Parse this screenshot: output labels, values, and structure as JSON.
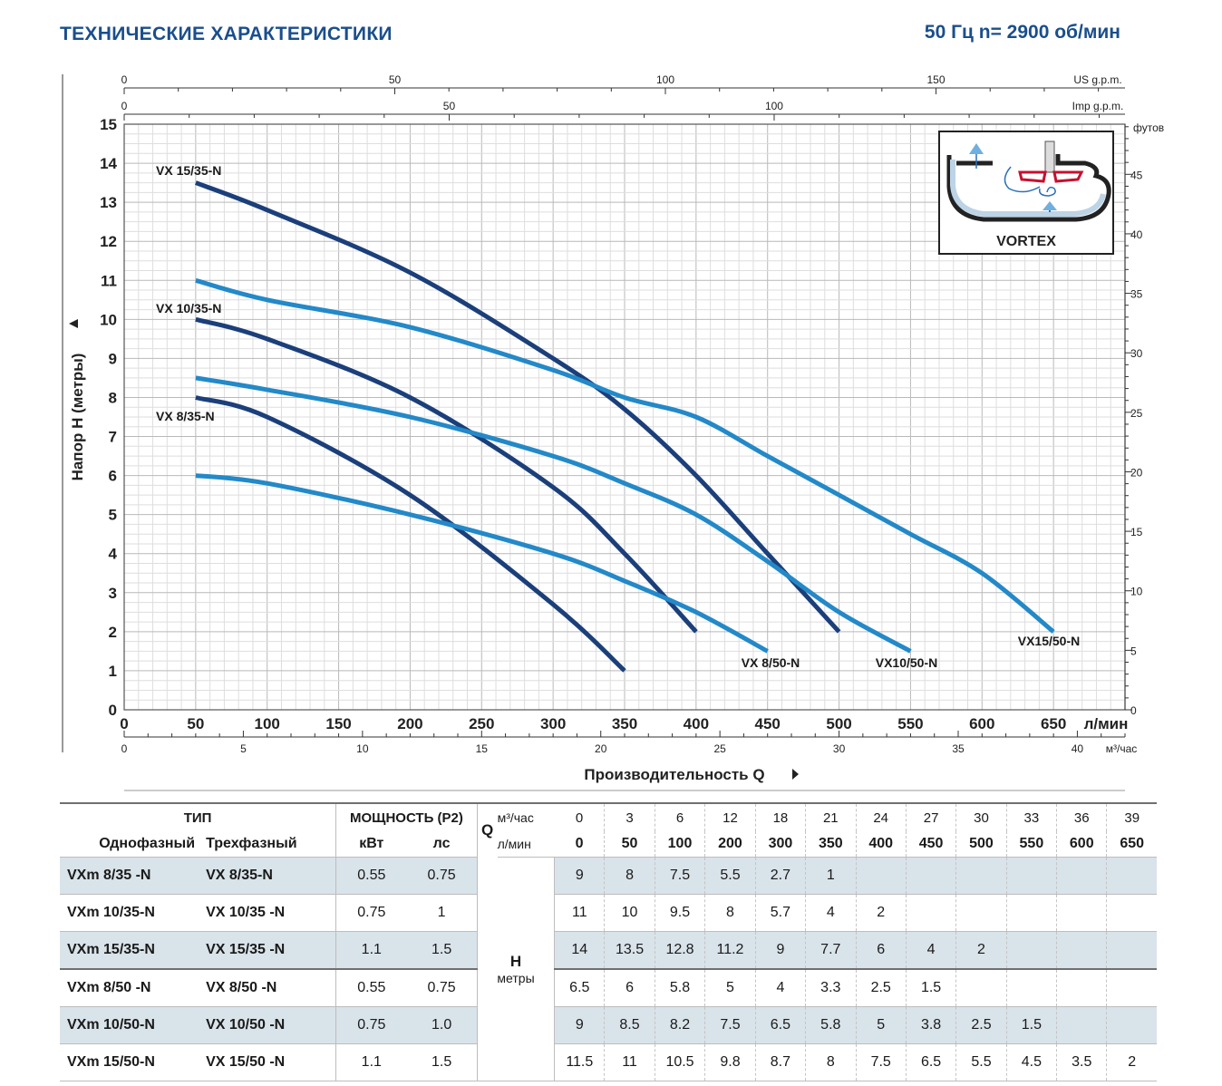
{
  "header": {
    "title": "ТЕХНИЧЕСКИЕ ХАРАКТЕРИСТИКИ",
    "frequency": "50 Гц  n= 2900 об/мин"
  },
  "vortex": {
    "label": "VORTEX"
  },
  "chart_data": {
    "type": "line",
    "title": "ТЕХНИЧЕСКИЕ ХАРАКТЕРИСТИКИ",
    "xlabel": "Производительность  Q",
    "ylabel": "Напор  H (метры)",
    "xlim": [
      0,
      700
    ],
    "ylim": [
      0,
      15
    ],
    "x_unit": "л/мин",
    "x_ticks": [
      0,
      50,
      100,
      150,
      200,
      250,
      300,
      350,
      400,
      450,
      500,
      550,
      600,
      650
    ],
    "y_ticks": [
      0,
      1,
      2,
      3,
      4,
      5,
      6,
      7,
      8,
      9,
      10,
      11,
      12,
      13,
      14,
      15
    ],
    "secondary_axes": {
      "us_gpm": {
        "label": "US g.p.m.",
        "ticks": [
          0,
          50,
          100,
          150
        ]
      },
      "imp_gpm": {
        "label": "Imp g.p.m.",
        "ticks": [
          0,
          50,
          100
        ]
      },
      "m3h": {
        "label": "м³/час",
        "ticks": [
          0,
          5,
          10,
          15,
          20,
          25,
          30,
          35,
          40
        ]
      },
      "feet": {
        "label": "футов",
        "ticks": [
          0,
          5,
          10,
          15,
          20,
          25,
          30,
          35,
          40,
          45
        ]
      }
    },
    "grid": true,
    "series": [
      {
        "name": "VX 8/35-N",
        "color": "#1b3f7a",
        "x": [
          50,
          100,
          200,
          300,
          350
        ],
        "y": [
          8,
          7.5,
          5.5,
          2.7,
          1
        ]
      },
      {
        "name": "VX 10/35-N",
        "color": "#1b3f7a",
        "x": [
          50,
          100,
          200,
          300,
          350,
          400
        ],
        "y": [
          10,
          9.5,
          8,
          5.7,
          4,
          2
        ]
      },
      {
        "name": "VX 15/35-N",
        "color": "#1b3f7a",
        "x": [
          50,
          100,
          200,
          300,
          350,
          400,
          450,
          500
        ],
        "y": [
          13.5,
          12.8,
          11.2,
          9,
          7.7,
          6,
          4,
          2
        ]
      },
      {
        "name": "VX 8/50-N",
        "color": "#2389c8",
        "x": [
          50,
          100,
          200,
          300,
          350,
          400,
          450
        ],
        "y": [
          6,
          5.8,
          5,
          4,
          3.3,
          2.5,
          1.5
        ]
      },
      {
        "name": "VX10/50-N",
        "color": "#2389c8",
        "x": [
          50,
          100,
          200,
          300,
          350,
          400,
          450,
          500,
          550
        ],
        "y": [
          8.5,
          8.2,
          7.5,
          6.5,
          5.8,
          5,
          3.8,
          2.5,
          1.5
        ]
      },
      {
        "name": "VX15/50-N",
        "color": "#2389c8",
        "x": [
          50,
          100,
          200,
          300,
          350,
          400,
          450,
          500,
          550,
          600,
          650
        ],
        "y": [
          11,
          10.5,
          9.8,
          8.7,
          8,
          7.5,
          6.5,
          5.5,
          4.5,
          3.5,
          2
        ]
      }
    ],
    "curve_labels": [
      "VX 15/35-N",
      "VX 10/35-N",
      "VX 8/35-N",
      "VX 8/50-N",
      "VX10/50-N",
      "VX15/50-N"
    ]
  },
  "table": {
    "type_header": "ТИП",
    "single_phase_header": "Однофазный",
    "three_phase_header": "Трехфазный",
    "power_header": "МОЩНОСТЬ (P2)",
    "kw_header": "кВт",
    "hp_header": "лс",
    "q_label": "Q",
    "m3h_label": "м³/час",
    "lmin_label": "л/мин",
    "h_label": "H",
    "h_unit": "метры",
    "m3h_values": [
      "0",
      "3",
      "6",
      "12",
      "18",
      "21",
      "24",
      "27",
      "30",
      "33",
      "36",
      "39"
    ],
    "lmin_values": [
      "0",
      "50",
      "100",
      "200",
      "300",
      "350",
      "400",
      "450",
      "500",
      "550",
      "600",
      "650"
    ],
    "rows": [
      {
        "single": "VXm  8/35  -N",
        "three": "VX  8/35-N",
        "kw": "0.55",
        "hp": "0.75",
        "h": [
          "9",
          "8",
          "7.5",
          "5.5",
          "2.7",
          "1",
          "",
          "",
          "",
          "",
          "",
          ""
        ]
      },
      {
        "single": "VXm 10/35-N",
        "three": "VX 10/35 -N",
        "kw": "0.75",
        "hp": "1",
        "h": [
          "11",
          "10",
          "9.5",
          "8",
          "5.7",
          "4",
          "2",
          "",
          "",
          "",
          "",
          ""
        ]
      },
      {
        "single": "VXm 15/35-N",
        "three": "VX 15/35 -N",
        "kw": "1.1",
        "hp": "1.5",
        "h": [
          "14",
          "13.5",
          "12.8",
          "11.2",
          "9",
          "7.7",
          "6",
          "4",
          "2",
          "",
          "",
          ""
        ]
      },
      {
        "single": "VXm  8/50  -N",
        "three": "VX  8/50  -N",
        "kw": "0.55",
        "hp": "0.75",
        "h": [
          "6.5",
          "6",
          "5.8",
          "5",
          "4",
          "3.3",
          "2.5",
          "1.5",
          "",
          "",
          "",
          ""
        ]
      },
      {
        "single": "VXm 10/50-N",
        "three": "VX 10/50 -N",
        "kw": "0.75",
        "hp": "1.0",
        "h": [
          "9",
          "8.5",
          "8.2",
          "7.5",
          "6.5",
          "5.8",
          "5",
          "3.8",
          "2.5",
          "1.5",
          "",
          ""
        ]
      },
      {
        "single": "VXm 15/50-N",
        "three": "VX 15/50 -N",
        "kw": "1.1",
        "hp": "1.5",
        "h": [
          "11.5",
          "11",
          "10.5",
          "9.8",
          "8.7",
          "8",
          "7.5",
          "6.5",
          "5.5",
          "4.5",
          "3.5",
          "2"
        ]
      }
    ]
  }
}
